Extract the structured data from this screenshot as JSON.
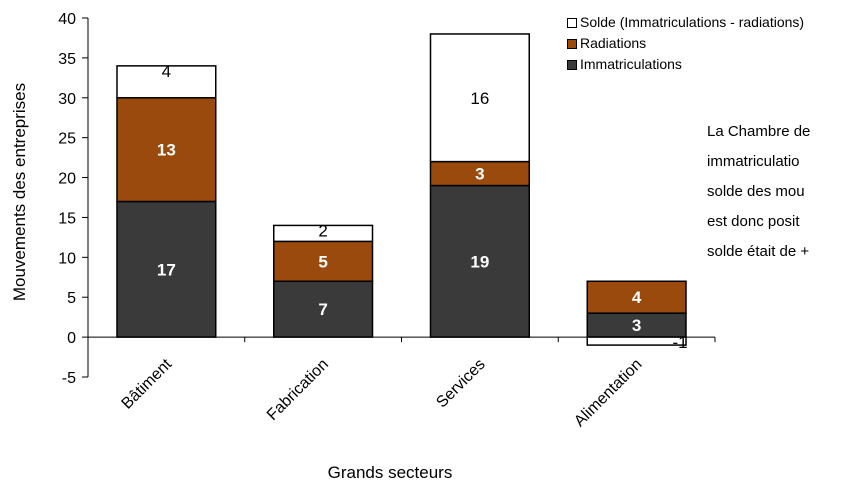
{
  "chart_data": {
    "type": "bar",
    "stacked": true,
    "categories": [
      "Bâtiment",
      "Fabrication",
      "Services",
      "Alimentation"
    ],
    "series": [
      {
        "name": "Immatriculations",
        "values": [
          17,
          7,
          19,
          3
        ],
        "labels": [
          "17",
          "7",
          "19",
          "3"
        ],
        "color": "#3a3a3a",
        "label_color": "#ffffff"
      },
      {
        "name": "Radiations",
        "values": [
          13,
          5,
          3,
          4
        ],
        "labels": [
          "13",
          "5",
          "3",
          "4"
        ],
        "color": "#9a4a0c",
        "label_color": "#ffffff"
      },
      {
        "name": "Solde (Immatriculations - radiations)",
        "values": [
          4,
          2,
          16,
          -1
        ],
        "labels": [
          "4",
          "2",
          "16",
          "-1"
        ],
        "color": "#ffffff",
        "label_color": "#000000"
      }
    ],
    "ylim": [
      -5,
      40
    ],
    "yticks": [
      -5,
      0,
      5,
      10,
      15,
      20,
      25,
      30,
      35,
      40
    ],
    "ylabel": "Mouvements des entreprises",
    "xlabel": "Grands secteurs",
    "legend_order": [
      "Solde (Immatriculations - radiations)",
      "Radiations",
      "Immatriculations"
    ],
    "legend_position": "top-right",
    "grid": false
  },
  "side_text": {
    "lines": [
      "La Chambre de",
      "immatriculatio",
      "solde des mou",
      "est donc posit",
      "solde était de +"
    ]
  }
}
